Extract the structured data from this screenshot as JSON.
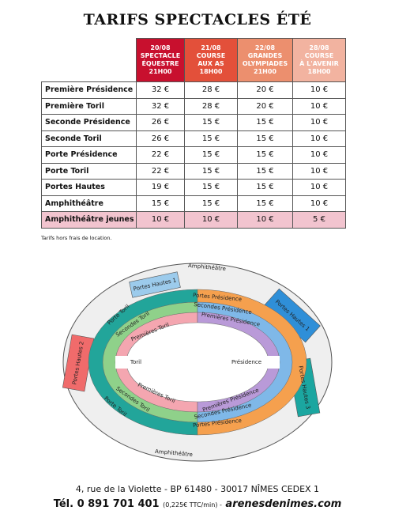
{
  "header": {
    "title": "TARIFS SPECTACLES ÉTÉ"
  },
  "table": {
    "columns": [
      [
        "20/08",
        "SPECTACLE",
        "ÉQUESTRE",
        "21H00"
      ],
      [
        "21/08",
        "COURSE",
        "AUX AS",
        "18H00"
      ],
      [
        "22/08",
        "GRANDES",
        "OLYMPIADES",
        "21H00"
      ],
      [
        "28/08",
        "COURSE",
        "À L'AVENIR",
        "18H00"
      ]
    ],
    "rows": [
      [
        "Première Présidence",
        "32 €",
        "28 €",
        "20 €",
        "10 €"
      ],
      [
        "Première Toril",
        "32 €",
        "28 €",
        "20 €",
        "10 €"
      ],
      [
        "Seconde Présidence",
        "26 €",
        "15 €",
        "15 €",
        "10 €"
      ],
      [
        "Seconde Toril",
        "26 €",
        "15 €",
        "15 €",
        "10 €"
      ],
      [
        "Porte Présidence",
        "22 €",
        "15 €",
        "15 €",
        "10 €"
      ],
      [
        "Porte Toril",
        "22 €",
        "15 €",
        "15 €",
        "10 €"
      ],
      [
        "Portes Hautes",
        "19 €",
        "15 €",
        "15 €",
        "10 €"
      ],
      [
        "Amphithéâtre",
        "15 €",
        "15 €",
        "15 €",
        "10 €"
      ],
      [
        "Amphithéâtre jeunes",
        "10 €",
        "10 €",
        "10 €",
        "5 €"
      ]
    ]
  },
  "note": "Tarifs hors frais de location.",
  "map": {
    "labels": [
      "Amphithéâtre",
      "Portes Hautes 1",
      "Portes Hautes 1",
      "Portes Présidence",
      "Secondes Présidence",
      "Premières Présidence",
      "Porte Toril",
      "Secondes Toril",
      "Premières Toril",
      "Portes Hautes 2",
      "Toril",
      "Présidence",
      "Premières Toril",
      "Secondes Toril",
      "Porte Toril",
      "Premières Présidence",
      "Secondes Présidence",
      "Portes Présidence",
      "Portes Hautes 3",
      "Amphithéâtre"
    ]
  },
  "footer": {
    "address": "4, rue de la Violette - BP 61480 - 30017 NÎMES CEDEX 1",
    "phone": "Tél. 0 891 701 401",
    "rate": "(0,225€ TTC/min) -",
    "website": "arenesdenimes.com"
  }
}
